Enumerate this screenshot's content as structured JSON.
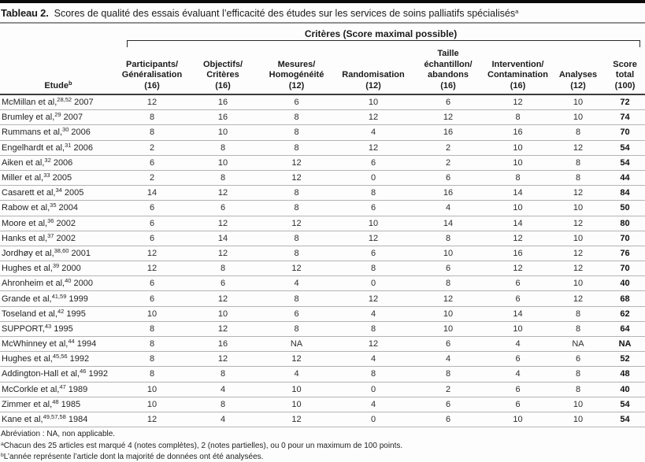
{
  "title": {
    "prefix": "Tableau 2.",
    "text": "Scores de qualité des essais évaluant l’efficacité des études sur les services de soins palliatifs spécialisés",
    "superscript": "a"
  },
  "criteria_banner": "Critères (Score maximal possible)",
  "table": {
    "study_header": {
      "label": "Etude",
      "superscript": "b"
    },
    "columns": [
      {
        "lines": [
          "Participants/",
          "Généralisation"
        ],
        "max": "(16)"
      },
      {
        "lines": [
          "Objectifs/",
          "Critères"
        ],
        "max": "(16)"
      },
      {
        "lines": [
          "Mesures/",
          "Homogénéité"
        ],
        "max": "(12)"
      },
      {
        "lines": [
          "Randomisation"
        ],
        "max": "(12)"
      },
      {
        "lines": [
          "Taille",
          "échantillon/",
          "abandons"
        ],
        "max": "(16)"
      },
      {
        "lines": [
          "Intervention/",
          "Contamination"
        ],
        "max": "(16)"
      },
      {
        "lines": [
          "Analyses"
        ],
        "max": "(12)"
      },
      {
        "lines": [
          "Score",
          "total"
        ],
        "max": "(100)"
      }
    ],
    "rows": [
      {
        "study": "McMillan et al,",
        "refs": "28,52",
        "year": "2007",
        "scores": [
          "12",
          "16",
          "6",
          "10",
          "6",
          "12",
          "10"
        ],
        "total": "72"
      },
      {
        "study": "Brumley et al,",
        "refs": "29",
        "year": "2007",
        "scores": [
          "8",
          "16",
          "8",
          "12",
          "12",
          "8",
          "10"
        ],
        "total": "74"
      },
      {
        "study": "Rummans et al,",
        "refs": "30",
        "year": "2006",
        "scores": [
          "8",
          "10",
          "8",
          "4",
          "16",
          "16",
          "8"
        ],
        "total": "70"
      },
      {
        "study": "Engelhardt et al,",
        "refs": "31",
        "year": "2006",
        "scores": [
          "2",
          "8",
          "8",
          "12",
          "2",
          "10",
          "12"
        ],
        "total": "54"
      },
      {
        "study": "Aiken et al,",
        "refs": "32",
        "year": "2006",
        "scores": [
          "6",
          "10",
          "12",
          "6",
          "2",
          "10",
          "8"
        ],
        "total": "54"
      },
      {
        "study": "Miller et al,",
        "refs": "33",
        "year": "2005",
        "scores": [
          "2",
          "8",
          "12",
          "0",
          "6",
          "8",
          "8"
        ],
        "total": "44"
      },
      {
        "study": "Casarett et al,",
        "refs": "34",
        "year": "2005",
        "scores": [
          "14",
          "12",
          "8",
          "8",
          "16",
          "14",
          "12"
        ],
        "total": "84"
      },
      {
        "study": "Rabow et al,",
        "refs": "35",
        "year": "2004",
        "scores": [
          "6",
          "6",
          "8",
          "6",
          "4",
          "10",
          "10"
        ],
        "total": "50"
      },
      {
        "study": "Moore et al,",
        "refs": "36",
        "year": "2002",
        "scores": [
          "6",
          "12",
          "12",
          "10",
          "14",
          "14",
          "12"
        ],
        "total": "80"
      },
      {
        "study": "Hanks et al,",
        "refs": "37",
        "year": "2002",
        "scores": [
          "6",
          "14",
          "8",
          "12",
          "8",
          "12",
          "10"
        ],
        "total": "70"
      },
      {
        "study": "Jordhøy et al,",
        "refs": "38,60",
        "year": "2001",
        "scores": [
          "12",
          "12",
          "8",
          "6",
          "10",
          "16",
          "12"
        ],
        "total": "76"
      },
      {
        "study": "Hughes et al,",
        "refs": "39",
        "year": "2000",
        "scores": [
          "12",
          "8",
          "12",
          "8",
          "6",
          "12",
          "12"
        ],
        "total": "70"
      },
      {
        "study": "Ahronheim et al,",
        "refs": "40",
        "year": "2000",
        "scores": [
          "6",
          "6",
          "4",
          "0",
          "8",
          "6",
          "10"
        ],
        "total": "40"
      },
      {
        "study": "Grande et al,",
        "refs": "41,59",
        "year": "1999",
        "scores": [
          "6",
          "12",
          "8",
          "12",
          "12",
          "6",
          "12"
        ],
        "total": "68"
      },
      {
        "study": "Toseland et al,",
        "refs": "42",
        "year": "1995",
        "scores": [
          "10",
          "10",
          "6",
          "4",
          "10",
          "14",
          "8"
        ],
        "total": "62"
      },
      {
        "study": "SUPPORT,",
        "refs": "43",
        "year": "1995",
        "scores": [
          "8",
          "12",
          "8",
          "8",
          "10",
          "10",
          "8"
        ],
        "total": "64"
      },
      {
        "study": "McWhinney et al,",
        "refs": "44",
        "year": "1994",
        "scores": [
          "8",
          "16",
          "NA",
          "12",
          "6",
          "4",
          "NA"
        ],
        "total": "NA"
      },
      {
        "study": "Hughes et al,",
        "refs": "45,56",
        "year": "1992",
        "scores": [
          "8",
          "12",
          "12",
          "4",
          "4",
          "6",
          "6"
        ],
        "total": "52"
      },
      {
        "study": "Addington-Hall et al,",
        "refs": "46",
        "year": "1992",
        "scores": [
          "8",
          "8",
          "4",
          "8",
          "8",
          "4",
          "8"
        ],
        "total": "48"
      },
      {
        "study": "McCorkle et al,",
        "refs": "47",
        "year": "1989",
        "scores": [
          "10",
          "4",
          "10",
          "0",
          "2",
          "6",
          "8"
        ],
        "total": "40"
      },
      {
        "study": "Zimmer et al,",
        "refs": "48",
        "year": "1985",
        "scores": [
          "10",
          "8",
          "10",
          "4",
          "6",
          "6",
          "10"
        ],
        "total": "54"
      },
      {
        "study": "Kane et al,",
        "refs": "49,57,58",
        "year": "1984",
        "scores": [
          "12",
          "4",
          "12",
          "0",
          "6",
          "10",
          "10"
        ],
        "total": "54"
      }
    ]
  },
  "footnotes": [
    {
      "marker": "",
      "text": "Abréviation : NA, non applicable."
    },
    {
      "marker": "a",
      "text": "Chacun des 25 articles est marqué 4 (notes complètes), 2 (notes partielles), ou 0 pour un maximum de 100 points."
    },
    {
      "marker": "b",
      "text": "L’année représente l’article dont la majorité de données ont été analysées."
    }
  ]
}
